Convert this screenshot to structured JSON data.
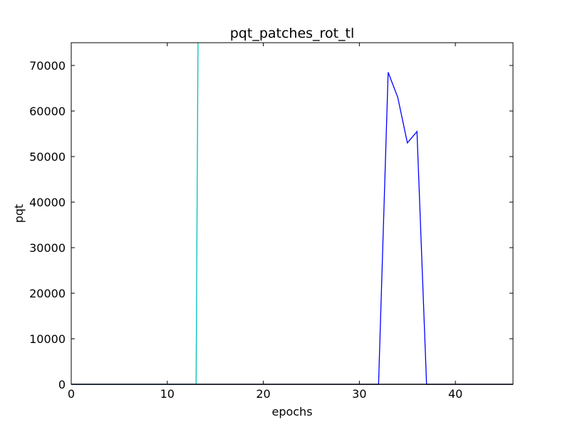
{
  "chart_data": {
    "type": "line",
    "title": "pqt_patches_rot_tl",
    "xlabel": "epochs",
    "ylabel": "pqt",
    "xlim": [
      0,
      46
    ],
    "ylim": [
      0,
      75000
    ],
    "xticks": [
      0,
      10,
      20,
      30,
      40
    ],
    "yticks": [
      0,
      10000,
      20000,
      30000,
      40000,
      50000,
      60000,
      70000
    ],
    "grid": false,
    "series": [
      {
        "color": "#0000ff",
        "x": [
          0,
          32,
          33,
          34,
          35,
          36,
          37,
          46
        ],
        "y": [
          0,
          0,
          68500,
          63000,
          53000,
          55500,
          0,
          0
        ]
      },
      {
        "color": "#00bfbf",
        "x": [
          0,
          13,
          13.2
        ],
        "y": [
          0,
          0,
          75000
        ]
      },
      {
        "color": "#000000",
        "x": [
          0,
          46
        ],
        "y": [
          0,
          0
        ]
      }
    ]
  }
}
